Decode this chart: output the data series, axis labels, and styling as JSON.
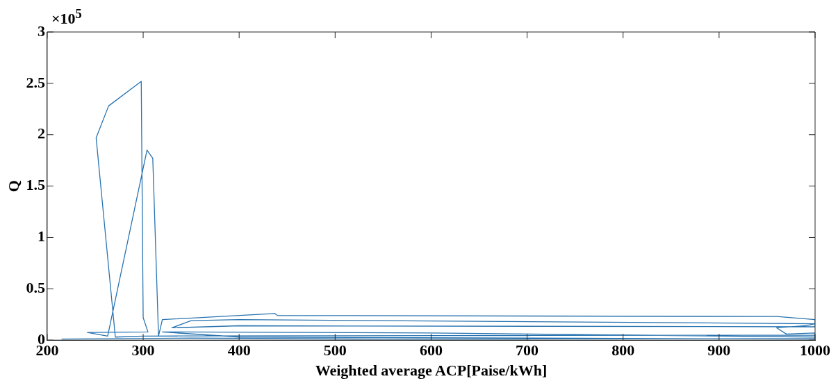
{
  "chart_data": {
    "type": "line",
    "xlabel": "Weighted average ACP[Paise/kWh]",
    "ylabel": "Q",
    "annotations": [
      "×10$^{5}$"
    ],
    "xlim": [
      200,
      1000
    ],
    "xticks": [
      200,
      300,
      400,
      500,
      600,
      700,
      800,
      900,
      1000
    ],
    "ylim": [
      0,
      3
    ],
    "yticks": [
      0,
      0.5,
      1,
      1.5,
      2,
      2.5,
      3
    ],
    "grid": false,
    "legend": false,
    "marker": "none",
    "line_style": "solid",
    "series": [
      {
        "color": "#2873b0",
        "x": [
          215,
          350,
          548,
          1000,
          1000,
          300,
          271,
          251,
          264,
          298,
          300,
          305,
          242,
          263,
          304,
          310,
          316,
          320,
          437,
          440,
          960,
          1000,
          1000,
          400,
          330,
          350,
          400,
          1000,
          990,
          960,
          970,
          1000,
          1000,
          600,
          320,
          400,
          1000
        ],
        "values": [
          0.01,
          0.02,
          0.01,
          0.015,
          0.05,
          0.04,
          0.03,
          1.97,
          2.28,
          2.52,
          0.22,
          0.08,
          0.075,
          0.04,
          1.85,
          1.77,
          0.04,
          0.2,
          0.26,
          0.24,
          0.23,
          0.2,
          0.13,
          0.14,
          0.12,
          0.19,
          0.2,
          0.16,
          0.14,
          0.12,
          0.06,
          0.07,
          0.03,
          0.07,
          0.08,
          0.03,
          0.01
        ]
      }
    ]
  }
}
